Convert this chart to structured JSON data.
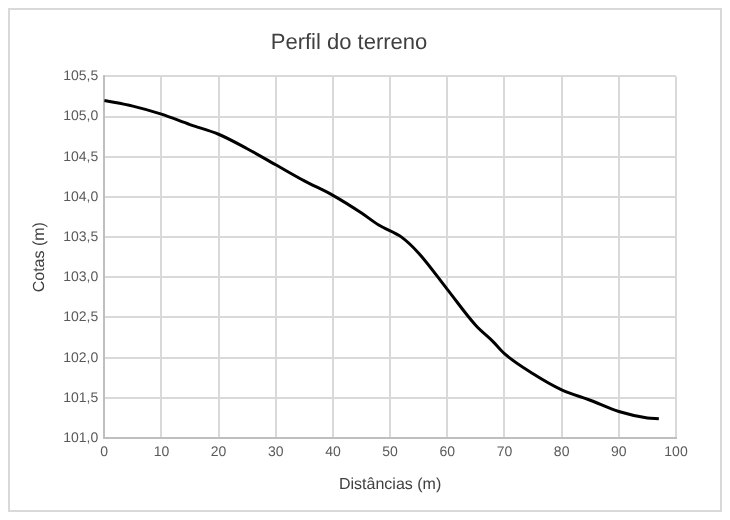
{
  "chart_data": {
    "type": "line",
    "title": "Perfil do terreno",
    "xlabel": "Distâncias (m)",
    "ylabel": "Cotas (m)",
    "x": [
      0,
      5,
      10,
      15,
      20,
      25,
      30,
      35,
      40,
      45,
      48,
      52,
      55,
      60,
      65,
      68,
      70,
      75,
      80,
      85,
      90,
      95,
      97
    ],
    "series": [
      {
        "color": "#000000",
        "values": [
          105.2,
          105.13,
          105.03,
          104.9,
          104.78,
          104.6,
          104.4,
          104.2,
          104.02,
          103.8,
          103.65,
          103.5,
          103.3,
          102.85,
          102.4,
          102.2,
          102.05,
          101.8,
          101.6,
          101.47,
          101.33,
          101.25,
          101.24
        ]
      }
    ],
    "xlim": [
      0,
      100
    ],
    "xticks": [
      0,
      10,
      20,
      30,
      40,
      50,
      60,
      70,
      80,
      90,
      100
    ],
    "ylim": [
      101,
      105.5
    ],
    "yticks": [
      {
        "value": 101,
        "label": "101,0"
      },
      {
        "value": 101.5,
        "label": "101,5"
      },
      {
        "value": 102,
        "label": "102,0"
      },
      {
        "value": 102.5,
        "label": "102,5"
      },
      {
        "value": 103,
        "label": "103,0"
      },
      {
        "value": 103.5,
        "label": "103,5"
      },
      {
        "value": 104,
        "label": "104,0"
      },
      {
        "value": 104.5,
        "label": "104,5"
      },
      {
        "value": 105,
        "label": "105,0"
      },
      {
        "value": 105.5,
        "label": "105,5"
      }
    ],
    "grid": true,
    "legend": false,
    "marker": "none",
    "line_style": "solid"
  }
}
